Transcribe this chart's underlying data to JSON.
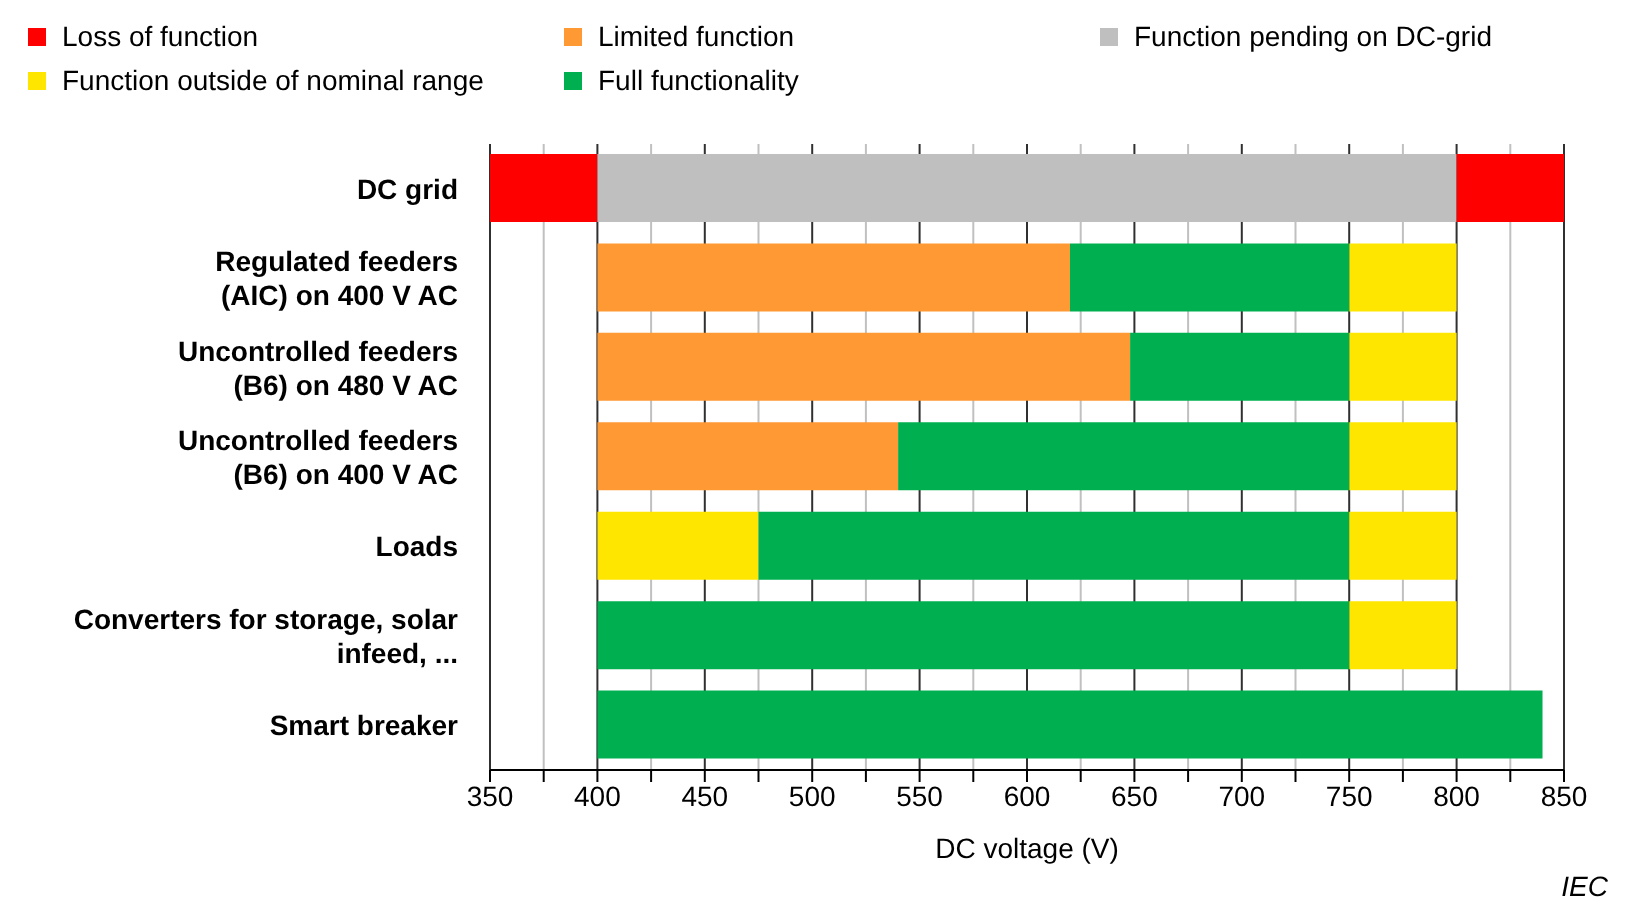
{
  "chart_data": {
    "type": "bar",
    "orientation": "horizontal",
    "categories": [
      "DC grid",
      "Regulated feeders\n(AIC) on 400 V AC",
      "Uncontrolled feeders\n(B6) on 480 V AC",
      "Uncontrolled feeders\n(B6) on 400 V AC",
      "Loads",
      "Converters for storage, solar\ninfeed, ...",
      "Smart breaker"
    ],
    "series": [
      {
        "name": "Loss of function",
        "color": "#ff0000",
        "base": [
          350,
          null,
          null,
          null,
          null,
          null,
          null
        ],
        "values": [
          50,
          null,
          null,
          null,
          null,
          null,
          null
        ]
      },
      {
        "name": "Limited function",
        "color": "#ff9933",
        "base": [
          null,
          400,
          400,
          400,
          null,
          null,
          null
        ],
        "values": [
          null,
          220,
          248,
          140,
          null,
          null,
          null
        ]
      },
      {
        "name": "Function pending on DC-grid",
        "color": "#bfbfbf",
        "base": [
          400,
          null,
          null,
          null,
          null,
          null,
          null
        ],
        "values": [
          400,
          null,
          null,
          null,
          null,
          null,
          null
        ]
      },
      {
        "name": "Function outside of nominal range",
        "color": "#ffe600",
        "base": [
          null,
          750,
          750,
          750,
          400,
          750,
          null
        ],
        "values": [
          null,
          50,
          50,
          50,
          75,
          50,
          null
        ]
      },
      {
        "name": "Full functionality",
        "color": "#00b050",
        "base": [
          null,
          620,
          648,
          540,
          475,
          400,
          400
        ],
        "values": [
          null,
          130,
          102,
          210,
          275,
          350,
          440
        ]
      },
      {
        "color": "#ffe600",
        "base": [
          null,
          null,
          null,
          null,
          750,
          null,
          null
        ],
        "values": [
          null,
          null,
          null,
          null,
          50,
          null,
          null
        ]
      },
      {
        "color": "#ff0000",
        "base": [
          800,
          null,
          null,
          null,
          null,
          null,
          null
        ],
        "values": [
          50,
          null,
          null,
          null,
          null,
          null,
          null
        ]
      }
    ],
    "xlabel": "DC voltage  (V)",
    "xlim": [
      350,
      850
    ],
    "xticks": [
      350,
      {
        "value": 375,
        "label": null
      },
      400,
      {
        "value": 425,
        "label": null
      },
      450,
      {
        "value": 475,
        "label": null
      },
      500,
      {
        "value": 525,
        "label": null
      },
      550,
      {
        "value": 575,
        "label": null
      },
      600,
      {
        "value": 625,
        "label": null
      },
      650,
      {
        "value": 675,
        "label": null
      },
      700,
      {
        "value": 725,
        "label": null
      },
      750,
      {
        "value": 775,
        "label": null
      },
      800,
      {
        "value": 825,
        "label": null
      },
      850
    ],
    "grid": "x",
    "legend": "top",
    "annotations": [
      "IEC"
    ]
  }
}
